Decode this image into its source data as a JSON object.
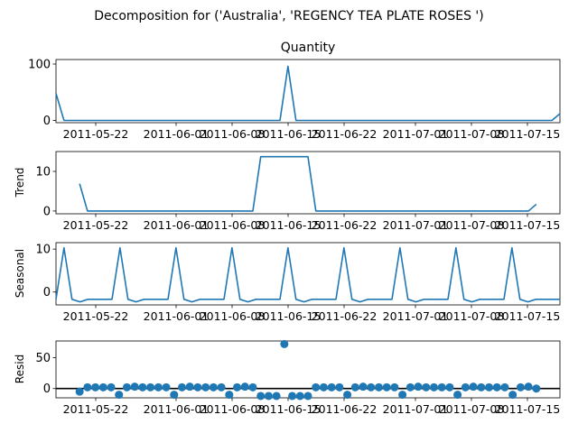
{
  "figure_title": "Decomposition for ('Australia', 'REGENCY TEA PLATE ROSES ')",
  "x_tick_labels": [
    "2011-05-22",
    "2011-06-01",
    "2011-06-08",
    "2011-06-15",
    "2011-06-22",
    "2011-07-01",
    "2011-07-08",
    "2011-07-15"
  ],
  "colors": {
    "line": "#1f77b4",
    "axis": "#000000"
  },
  "chart_data": [
    {
      "type": "line",
      "title": "Quantity",
      "ylabel": "",
      "ylim": [
        -4,
        108
      ],
      "yticks": [
        0,
        100
      ],
      "values": [
        48,
        0,
        0,
        0,
        0,
        0,
        0,
        0,
        0,
        0,
        0,
        0,
        0,
        0,
        0,
        0,
        0,
        0,
        0,
        0,
        0,
        0,
        0,
        0,
        0,
        0,
        0,
        0,
        0,
        96,
        0,
        0,
        0,
        0,
        0,
        0,
        0,
        0,
        0,
        0,
        0,
        0,
        0,
        0,
        0,
        0,
        0,
        0,
        0,
        0,
        0,
        0,
        0,
        0,
        0,
        0,
        0,
        0,
        0,
        0,
        0,
        0,
        0,
        12
      ]
    },
    {
      "type": "line",
      "title": "",
      "ylabel": "Trend",
      "ylim": [
        -0.7,
        15
      ],
      "yticks": [
        0,
        10
      ],
      "values": [
        null,
        null,
        null,
        6.9,
        0,
        0,
        0,
        0,
        0,
        0,
        0,
        0,
        0,
        0,
        0,
        0,
        0,
        0,
        0,
        0,
        0,
        0,
        0,
        0,
        0,
        0,
        13.7,
        13.7,
        13.7,
        13.7,
        13.7,
        13.7,
        13.7,
        0,
        0,
        0,
        0,
        0,
        0,
        0,
        0,
        0,
        0,
        0,
        0,
        0,
        0,
        0,
        0,
        0,
        0,
        0,
        0,
        0,
        0,
        0,
        0,
        0,
        0,
        0,
        0,
        1.7,
        null,
        null,
        null
      ]
    },
    {
      "type": "line",
      "title": "",
      "ylabel": "Seasonal",
      "ylim": [
        -3,
        11.5
      ],
      "yticks": [
        0,
        10
      ],
      "values": [
        -1.7,
        10.3,
        -1.7,
        -2.3,
        -1.7,
        -1.7,
        -1.7,
        -1.7,
        10.3,
        -1.7,
        -2.3,
        -1.7,
        -1.7,
        -1.7,
        -1.7,
        10.3,
        -1.7,
        -2.3,
        -1.7,
        -1.7,
        -1.7,
        -1.7,
        10.3,
        -1.7,
        -2.3,
        -1.7,
        -1.7,
        -1.7,
        -1.7,
        10.3,
        -1.7,
        -2.3,
        -1.7,
        -1.7,
        -1.7,
        -1.7,
        10.3,
        -1.7,
        -2.3,
        -1.7,
        -1.7,
        -1.7,
        -1.7,
        10.3,
        -1.7,
        -2.3,
        -1.7,
        -1.7,
        -1.7,
        -1.7,
        10.3,
        -1.7,
        -2.3,
        -1.7,
        -1.7,
        -1.7,
        -1.7,
        10.3,
        -1.7,
        -2.3,
        -1.7,
        -1.7,
        -1.7,
        -1.7
      ]
    },
    {
      "type": "scatter",
      "title": "",
      "ylabel": "Resid",
      "ylim": [
        -15,
        77
      ],
      "yticks": [
        0,
        50
      ],
      "zero_line": true,
      "values": [
        null,
        null,
        null,
        -5,
        2,
        2,
        2,
        2,
        -10,
        2,
        3,
        2,
        2,
        2,
        2,
        -10,
        2,
        3,
        2,
        2,
        2,
        2,
        -10,
        2,
        3,
        2,
        -12,
        -12,
        -12,
        72,
        -12,
        -12,
        -12,
        2,
        2,
        2,
        2,
        -10,
        2,
        3,
        2,
        2,
        2,
        2,
        -10,
        2,
        3,
        2,
        2,
        2,
        2,
        -10,
        2,
        3,
        2,
        2,
        2,
        2,
        -10,
        2,
        3,
        0,
        null,
        null,
        null
      ]
    }
  ]
}
